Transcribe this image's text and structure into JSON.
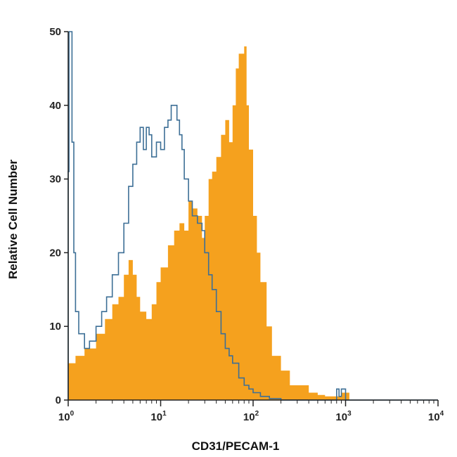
{
  "chart_data": {
    "type": "area",
    "title": "",
    "xlabel": "CD31/PECAM-1",
    "ylabel": "Relative Cell Number",
    "xscale": "log",
    "xlim": [
      1,
      10000
    ],
    "ylim": [
      0,
      50
    ],
    "x_ticks": [
      {
        "base": "10",
        "exp": "0"
      },
      {
        "base": "10",
        "exp": "1"
      },
      {
        "base": "10",
        "exp": "2"
      },
      {
        "base": "10",
        "exp": "3"
      },
      {
        "base": "10",
        "exp": "4"
      }
    ],
    "y_ticks": [
      "0",
      "10",
      "20",
      "30",
      "40",
      "50"
    ],
    "grid": false,
    "legend": "none",
    "series": [
      {
        "style": "filled",
        "color": "#f5a11e",
        "x": [
          1,
          1.2,
          1.5,
          2,
          2.5,
          3,
          3.5,
          4,
          4.5,
          5,
          5.5,
          6,
          7,
          8,
          9,
          10,
          12,
          14,
          16,
          18,
          20,
          22,
          25,
          28,
          30,
          33,
          36,
          40,
          45,
          50,
          55,
          60,
          65,
          70,
          75,
          80,
          85,
          90,
          100,
          110,
          120,
          140,
          160,
          200,
          250,
          300,
          400,
          500,
          600,
          700,
          800,
          900,
          1000,
          1100
        ],
        "y": [
          5,
          6,
          7,
          9,
          11,
          13,
          14,
          17,
          19,
          17,
          14,
          12,
          11,
          13,
          16,
          18,
          21,
          23,
          24,
          23,
          27,
          26,
          25,
          22,
          25,
          30,
          31,
          33,
          36,
          38,
          35,
          40,
          45,
          47,
          47,
          48,
          40,
          34,
          25,
          20,
          16,
          10,
          6,
          4,
          2,
          2,
          1,
          0.7,
          0.5,
          0.5,
          0.5,
          1,
          1,
          0
        ]
      },
      {
        "style": "outline",
        "color": "#3d6f96",
        "x": [
          1,
          1.02,
          1.05,
          1.1,
          1.15,
          1.2,
          1.3,
          1.5,
          1.7,
          2,
          2.3,
          2.6,
          3,
          3.5,
          4,
          4.5,
          5,
          5.5,
          6,
          6.5,
          7,
          7.5,
          8,
          9,
          10,
          11,
          12,
          13,
          14,
          15,
          16,
          17,
          18,
          20,
          22,
          25,
          28,
          30,
          33,
          36,
          40,
          45,
          50,
          55,
          60,
          70,
          80,
          90,
          100,
          120,
          150,
          180,
          200,
          300,
          500,
          700,
          800,
          850,
          900,
          1000,
          10000
        ],
        "y": [
          31,
          50,
          50,
          35,
          20,
          12,
          9,
          7,
          8,
          10,
          12,
          14,
          17,
          20,
          24,
          29,
          32,
          35,
          37,
          34,
          37,
          36,
          33,
          35,
          34,
          37,
          38,
          40,
          40,
          38,
          36,
          34,
          30,
          27,
          25,
          24,
          23,
          20,
          17,
          15,
          12,
          9,
          7,
          6,
          5,
          3,
          2,
          1.5,
          1,
          0.5,
          0.2,
          0.2,
          0,
          0,
          0,
          0,
          1.5,
          0.5,
          1.5,
          0,
          0
        ]
      }
    ]
  }
}
